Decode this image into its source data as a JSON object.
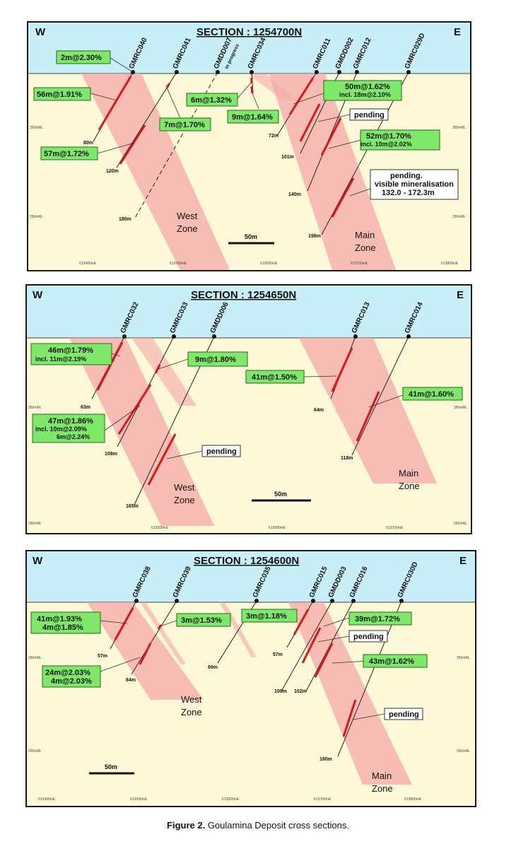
{
  "caption": {
    "bold": "Figure 2.",
    "text": " Goulamina Deposit cross sections."
  },
  "colors": {
    "sky": "#c8eef8",
    "ground": "#fdf8d8",
    "zone": "#f4a9a9",
    "intercept": "#d8171c",
    "assay_fill": "#7fe86a"
  },
  "sections": [
    {
      "title": "SECTION : 1254700N",
      "west": "W",
      "east": "E",
      "scale": "50m",
      "rl_ticks": [
        "350mRL",
        "250mRL"
      ],
      "east_ticks": [
        "613400mE",
        "613500mE",
        "613600mE",
        "613700mE",
        "613800mE"
      ],
      "zones": [
        {
          "name1": "West",
          "name2": "Zone"
        },
        {
          "name1": "Main",
          "name2": "Zone"
        }
      ],
      "holes": [
        "GMRC040",
        "GMRC041",
        "GMDD007",
        "GMRC034",
        "GMRC011",
        "GMDD002",
        "GMRC012",
        "GMRC029D"
      ],
      "hole_note": "in progress",
      "depths": [
        "80m",
        "120m",
        "180m",
        "72m",
        "101m",
        "140m",
        "198m"
      ],
      "assays": [
        "2m@2.30%",
        "56m@1.91%",
        "57m@1.72%",
        "7m@1.70%",
        "6m@1.32%",
        "9m@1.64%",
        "50m@1.62%",
        "52m@1.70%"
      ],
      "assay_subs": [
        "incl. 18m@2.10%",
        "incl. 10m@2.02%"
      ],
      "pending": [
        "pending",
        "pending.",
        "visible mineralisation",
        "132.0 - 172.3m"
      ]
    },
    {
      "title": "SECTION : 1254650N",
      "west": "W",
      "east": "E",
      "scale": "50m",
      "rl_ticks": [
        "350mRL",
        "250mRL"
      ],
      "east_ticks": [
        "613500mE",
        "613600mE",
        "613700mE"
      ],
      "zones": [
        {
          "name1": "West",
          "name2": "Zone"
        },
        {
          "name1": "Main",
          "name2": "Zone"
        }
      ],
      "holes": [
        "GMRC032",
        "GMRC033",
        "GMDD006",
        "GMRC013",
        "GMRC014"
      ],
      "depths": [
        "63m",
        "108m",
        "165m",
        "64m",
        "118m"
      ],
      "assays": [
        "46m@1.79%",
        "9m@1.80%",
        "41m@1.50%",
        "41m@1.60%",
        "47m@1.86%"
      ],
      "assay_subs": [
        "incl. 11m@2.19%",
        "incl. 10m@2.09%",
        "6m@2.24%"
      ],
      "pending": [
        "pending"
      ]
    },
    {
      "title": "SECTION : 1254600N",
      "west": "W",
      "east": "E",
      "scale": "50m",
      "rl_ticks": [
        "350mRL",
        "250mRL"
      ],
      "east_ticks": [
        "613400mE",
        "613500mE",
        "613600mE",
        "613700mE",
        "613800mE"
      ],
      "zones": [
        {
          "name1": "West",
          "name2": "Zone"
        },
        {
          "name1": "Main",
          "name2": "Zone"
        }
      ],
      "holes": [
        "GMRC038",
        "GMRC039",
        "GMRC035",
        "GMRC015",
        "GMDD003",
        "GMRC016",
        "GMRC030D"
      ],
      "depths": [
        "57m",
        "84m",
        "69m",
        "57m",
        "100m",
        "102m",
        "180m"
      ],
      "assays": [
        "41m@1.93%",
        "4m@1.85%",
        "3m@1.53%",
        "3m@1.18%",
        "39m@1.72%",
        "24m@2.03%",
        "4m@2.03%",
        "43m@1.62%"
      ],
      "pending": [
        "pending",
        "pending"
      ]
    }
  ]
}
